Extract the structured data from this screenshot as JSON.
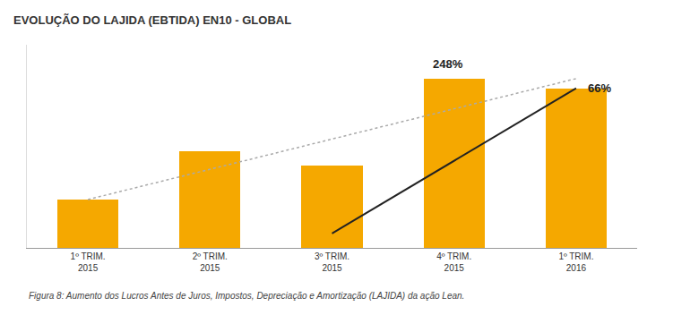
{
  "chart_data": {
    "type": "bar",
    "title": "EVOLUÇÃO DO LAJIDA (EBTIDA) EN10 - GLOBAL",
    "caption": "Figura 8: Aumento dos Lucros Antes de Juros, Impostos, Depreciação e Amortização (LAJIDA) da ação Lean.",
    "categories": [
      "1º TRIM.\n2015",
      "2º TRIM.\n2015",
      "3º TRIM.\n2015",
      "4º TRIM.\n2015",
      "1º TRIM.\n2016"
    ],
    "series": [
      {
        "type": "bar",
        "color": "#F5A800",
        "values": [
          1.0,
          2.0,
          1.7,
          3.5,
          3.3
        ]
      },
      {
        "type": "line",
        "line_style": "dotted",
        "color": "#aaaaaa",
        "x": [
          "1º TRIM.\n2015",
          "1º TRIM.\n2016"
        ],
        "values": [
          1.0,
          3.5
        ]
      },
      {
        "type": "line",
        "line_style": "solid",
        "color": "#222222",
        "x": [
          "3º TRIM.\n2015",
          "1º TRIM.\n2016"
        ],
        "values": [
          0.3,
          3.3
        ]
      }
    ],
    "annotations": [
      {
        "text": "248%",
        "x": 2.95,
        "y": 3.62
      },
      {
        "text": "66%",
        "x": 4.08,
        "y": 3.3
      }
    ],
    "ylim": [
      0,
      4.2
    ],
    "tick_labels": "x",
    "grid": false
  }
}
